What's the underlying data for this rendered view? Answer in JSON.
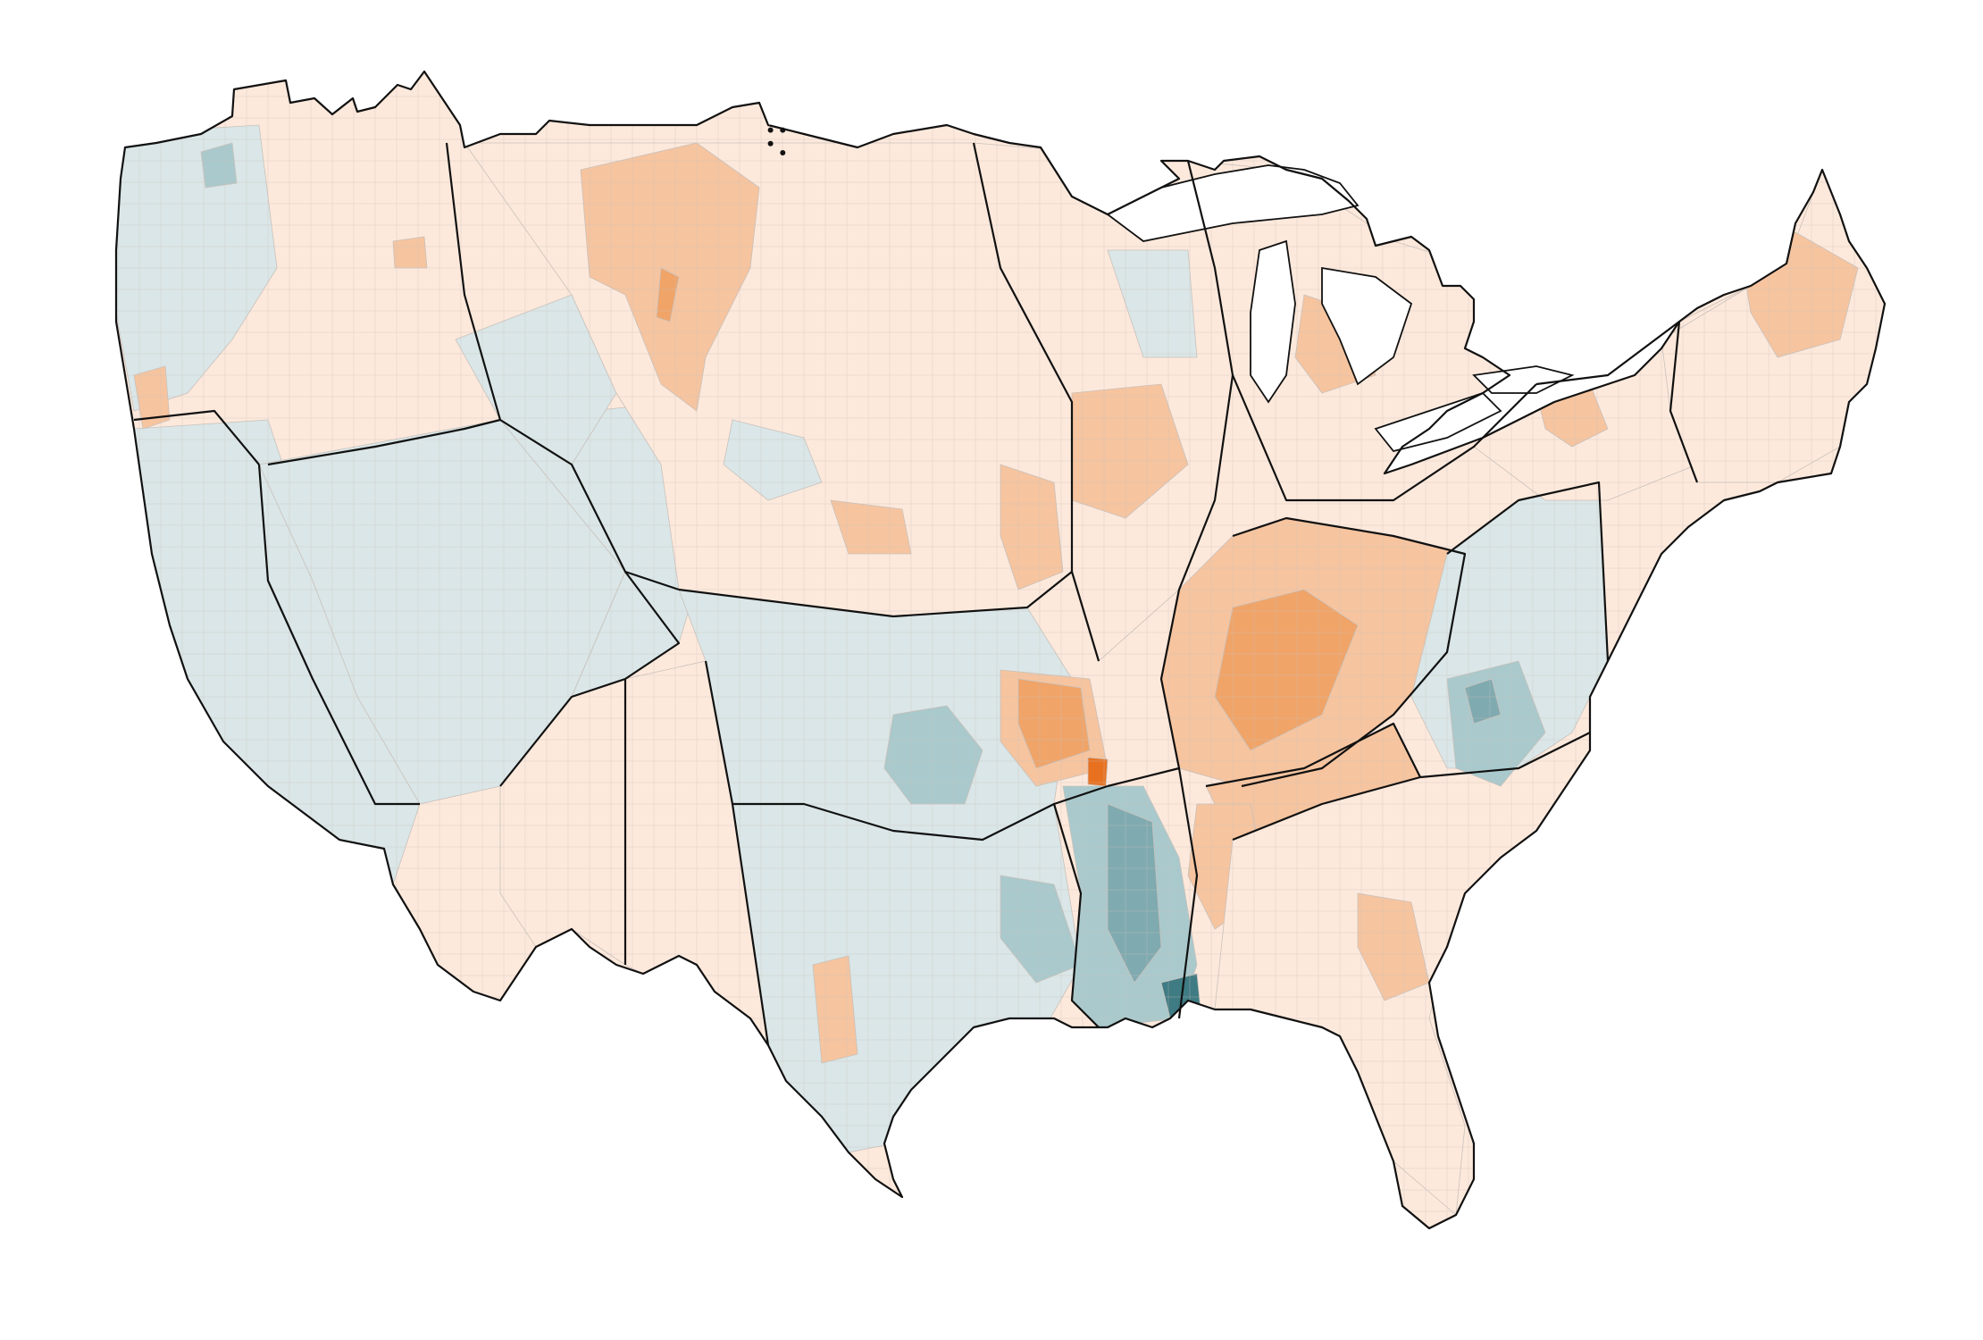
{
  "map": {
    "kind": "choropleth",
    "extent": "contiguous-united-states",
    "unit_boundaries": "watershed-subbasins",
    "outline_boundaries": "major-river-basins",
    "legend": null,
    "title": ""
  },
  "colors": {
    "background": "#ffffff",
    "lake": "#ffffff",
    "basin_outline": "#111111",
    "subbasin_outline": "#c9c1bb",
    "scale": {
      "neg3": "#3f7b83",
      "neg2": "#7faab0",
      "neg1": "#a9c9cc",
      "neg0": "#dae6e7",
      "pos0": "#fde9dc",
      "pos1": "#f6c49f",
      "pos2": "#f0a468",
      "pos3": "#e8711f"
    }
  },
  "regions": {
    "pacific_northwest_coast": "neg0",
    "pacific_northwest_interior": "pos0",
    "california": "neg0",
    "great_basin": "neg0",
    "upper_colorado": "neg0",
    "lower_colorado": "pos0",
    "rio_grande": "pos0",
    "missouri": "pos0",
    "north_dakota_hotspot": "pos1",
    "souris_red_rainy": "pos0",
    "upper_mississippi": "pos0",
    "arkansas_white_red": "neg0",
    "oklahoma_cluster": "neg1",
    "texas_gulf": "neg0",
    "lower_mississippi": "neg1",
    "mississippi_delta": "neg2",
    "ohio": "pos1",
    "ohio_core": "pos2",
    "ohio_confluence": "pos3",
    "tennessee": "pos1",
    "great_lakes": "pos0",
    "south_atlantic_gulf": "pos0",
    "virginia_carolinas": "neg0",
    "south_carolina_cluster": "neg1",
    "mid_atlantic": "pos0",
    "new_england": "pos0"
  },
  "markers": [
    {
      "name": "nd-dot-1",
      "lon": -103.3,
      "lat": 48.6
    },
    {
      "name": "nd-dot-2",
      "lon": -102.9,
      "lat": 48.6
    },
    {
      "name": "nd-dot-3",
      "lon": -103.3,
      "lat": 48.3
    },
    {
      "name": "nd-dot-4",
      "lon": -102.9,
      "lat": 48.1
    }
  ]
}
